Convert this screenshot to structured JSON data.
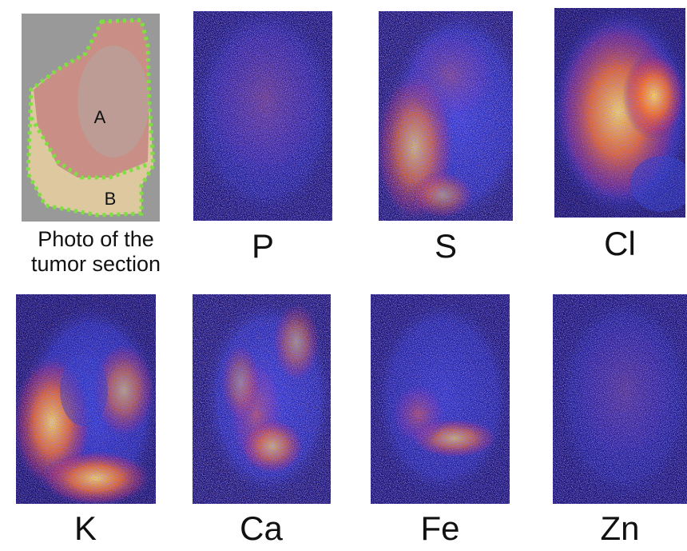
{
  "photo": {
    "labels": [
      "A",
      "B"
    ],
    "caption": [
      "Photo of the",
      "tumor section"
    ]
  },
  "maps": [
    {
      "element": "P"
    },
    {
      "element": "S"
    },
    {
      "element": "Cl"
    },
    {
      "element": "K"
    },
    {
      "element": "Ca"
    },
    {
      "element": "Fe"
    },
    {
      "element": "Zn"
    }
  ]
}
